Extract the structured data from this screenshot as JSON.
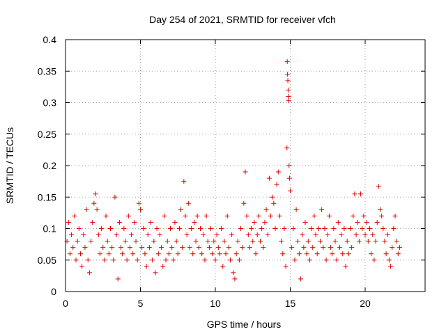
{
  "chart_data": {
    "type": "scatter",
    "title": "Day 254 of 2021, SRMTID for receiver vfch",
    "xlabel": "GPS time / hours",
    "ylabel": "SRMTID / TECUs",
    "xlim": [
      0,
      24
    ],
    "ylim": [
      0,
      0.4
    ],
    "xticks": [
      0,
      5,
      10,
      15,
      20
    ],
    "xtick_labels": [
      "0",
      "5",
      "10",
      "15",
      "20"
    ],
    "yticks": [
      0,
      0.05,
      0.1,
      0.15,
      0.2,
      0.25,
      0.3,
      0.35,
      0.4
    ],
    "ytick_labels": [
      "0",
      "0.05",
      "0.1",
      "0.15",
      "0.2",
      "0.25",
      "0.3",
      "0.35",
      "0.4"
    ],
    "grid": true,
    "marker": "+",
    "color": "#e00000",
    "series": [
      {
        "name": "SRMTID",
        "points": [
          [
            0.1,
            0.08
          ],
          [
            0.2,
            0.11
          ],
          [
            0.3,
            0.06
          ],
          [
            0.4,
            0.09
          ],
          [
            0.5,
            0.07
          ],
          [
            0.6,
            0.12
          ],
          [
            0.7,
            0.05
          ],
          [
            0.8,
            0.08
          ],
          [
            0.9,
            0.1
          ],
          [
            1.0,
            0.06
          ],
          [
            1.1,
            0.04
          ],
          [
            1.2,
            0.09
          ],
          [
            1.3,
            0.07
          ],
          [
            1.4,
            0.13
          ],
          [
            1.5,
            0.05
          ],
          [
            1.6,
            0.03
          ],
          [
            1.7,
            0.08
          ],
          [
            1.8,
            0.11
          ],
          [
            1.9,
            0.14
          ],
          [
            2.0,
            0.155
          ],
          [
            2.1,
            0.13
          ],
          [
            2.2,
            0.09
          ],
          [
            2.3,
            0.06
          ],
          [
            2.4,
            0.1
          ],
          [
            2.5,
            0.07
          ],
          [
            2.6,
            0.05
          ],
          [
            2.7,
            0.12
          ],
          [
            2.8,
            0.08
          ],
          [
            2.9,
            0.06
          ],
          [
            3.0,
            0.1
          ],
          [
            3.1,
            0.07
          ],
          [
            3.2,
            0.05
          ],
          [
            3.3,
            0.15
          ],
          [
            3.4,
            0.09
          ],
          [
            3.5,
            0.02
          ],
          [
            3.6,
            0.11
          ],
          [
            3.7,
            0.07
          ],
          [
            3.8,
            0.06
          ],
          [
            3.9,
            0.1
          ],
          [
            4.0,
            0.08
          ],
          [
            4.1,
            0.05
          ],
          [
            4.2,
            0.12
          ],
          [
            4.3,
            0.07
          ],
          [
            4.4,
            0.09
          ],
          [
            4.5,
            0.06
          ],
          [
            4.6,
            0.11
          ],
          [
            4.7,
            0.08
          ],
          [
            4.8,
            0.05
          ],
          [
            4.9,
            0.14
          ],
          [
            5.0,
            0.13
          ],
          [
            5.1,
            0.07
          ],
          [
            5.2,
            0.1
          ],
          [
            5.3,
            0.06
          ],
          [
            5.4,
            0.04
          ],
          [
            5.5,
            0.09
          ],
          [
            5.6,
            0.07
          ],
          [
            5.7,
            0.11
          ],
          [
            5.8,
            0.05
          ],
          [
            5.9,
            0.08
          ],
          [
            6.0,
            0.03
          ],
          [
            6.1,
            0.1
          ],
          [
            6.2,
            0.06
          ],
          [
            6.3,
            0.09
          ],
          [
            6.4,
            0.07
          ],
          [
            6.5,
            0.04
          ],
          [
            6.6,
            0.12
          ],
          [
            6.7,
            0.05
          ],
          [
            6.8,
            0.08
          ],
          [
            6.9,
            0.06
          ],
          [
            7.0,
            0.1
          ],
          [
            7.1,
            0.07
          ],
          [
            7.2,
            0.05
          ],
          [
            7.3,
            0.11
          ],
          [
            7.4,
            0.08
          ],
          [
            7.5,
            0.06
          ],
          [
            7.6,
            0.1
          ],
          [
            7.7,
            0.13
          ],
          [
            7.8,
            0.07
          ],
          [
            7.9,
            0.175
          ],
          [
            8.0,
            0.12
          ],
          [
            8.1,
            0.09
          ],
          [
            8.2,
            0.14
          ],
          [
            8.3,
            0.07
          ],
          [
            8.4,
            0.1
          ],
          [
            8.5,
            0.06
          ],
          [
            8.6,
            0.11
          ],
          [
            8.7,
            0.08
          ],
          [
            8.8,
            0.12
          ],
          [
            8.9,
            0.07
          ],
          [
            9.0,
            0.1
          ],
          [
            9.1,
            0.06
          ],
          [
            9.2,
            0.09
          ],
          [
            9.3,
            0.05
          ],
          [
            9.4,
            0.12
          ],
          [
            9.5,
            0.08
          ],
          [
            9.6,
            0.07
          ],
          [
            9.7,
            0.1
          ],
          [
            9.8,
            0.06
          ],
          [
            9.9,
            0.08
          ],
          [
            10.0,
            0.05
          ],
          [
            10.1,
            0.09
          ],
          [
            10.2,
            0.07
          ],
          [
            10.3,
            0.06
          ],
          [
            10.4,
            0.1
          ],
          [
            10.5,
            0.04
          ],
          [
            10.6,
            0.08
          ],
          [
            10.7,
            0.06
          ],
          [
            10.8,
            0.12
          ],
          [
            10.9,
            0.07
          ],
          [
            11.0,
            0.05
          ],
          [
            11.1,
            0.09
          ],
          [
            11.2,
            0.03
          ],
          [
            11.3,
            0.02
          ],
          [
            11.4,
            0.06
          ],
          [
            11.5,
            0.08
          ],
          [
            11.6,
            0.05
          ],
          [
            11.7,
            0.1
          ],
          [
            11.8,
            0.07
          ],
          [
            11.9,
            0.14
          ],
          [
            12.0,
            0.19
          ],
          [
            12.1,
            0.12
          ],
          [
            12.2,
            0.09
          ],
          [
            12.3,
            0.07
          ],
          [
            12.4,
            0.1
          ],
          [
            12.5,
            0.08
          ],
          [
            12.6,
            0.11
          ],
          [
            12.7,
            0.06
          ],
          [
            12.8,
            0.09
          ],
          [
            12.9,
            0.12
          ],
          [
            13.0,
            0.08
          ],
          [
            13.1,
            0.1
          ],
          [
            13.2,
            0.07
          ],
          [
            13.3,
            0.11
          ],
          [
            13.4,
            0.13
          ],
          [
            13.5,
            0.09
          ],
          [
            13.6,
            0.18
          ],
          [
            13.7,
            0.12
          ],
          [
            13.8,
            0.15
          ],
          [
            13.9,
            0.14
          ],
          [
            14.0,
            0.1
          ],
          [
            14.1,
            0.17
          ],
          [
            14.2,
            0.19
          ],
          [
            14.3,
            0.12
          ],
          [
            14.4,
            0.08
          ],
          [
            14.5,
            0.06
          ],
          [
            14.6,
            0.1
          ],
          [
            14.7,
            0.04
          ],
          [
            14.8,
            0.365
          ],
          [
            14.82,
            0.345
          ],
          [
            14.84,
            0.335
          ],
          [
            14.86,
            0.32
          ],
          [
            14.88,
            0.31
          ],
          [
            14.9,
            0.303
          ],
          [
            14.78,
            0.228
          ],
          [
            14.92,
            0.2
          ],
          [
            14.95,
            0.18
          ],
          [
            15.0,
            0.16
          ],
          [
            15.1,
            0.07
          ],
          [
            15.2,
            0.1
          ],
          [
            15.3,
            0.05
          ],
          [
            15.4,
            0.13
          ],
          [
            15.5,
            0.08
          ],
          [
            15.6,
            0.06
          ],
          [
            15.7,
            0.02
          ],
          [
            15.8,
            0.09
          ],
          [
            15.9,
            0.07
          ],
          [
            16.0,
            0.11
          ],
          [
            16.1,
            0.06
          ],
          [
            16.2,
            0.08
          ],
          [
            16.3,
            0.05
          ],
          [
            16.4,
            0.1
          ],
          [
            16.5,
            0.07
          ],
          [
            16.6,
            0.12
          ],
          [
            16.7,
            0.09
          ],
          [
            16.8,
            0.06
          ],
          [
            16.9,
            0.1
          ],
          [
            17.0,
            0.08
          ],
          [
            17.1,
            0.13
          ],
          [
            17.2,
            0.07
          ],
          [
            17.3,
            0.1
          ],
          [
            17.4,
            0.05
          ],
          [
            17.5,
            0.09
          ],
          [
            17.6,
            0.12
          ],
          [
            17.7,
            0.07
          ],
          [
            17.8,
            0.06
          ],
          [
            17.9,
            0.1
          ],
          [
            18.0,
            0.08
          ],
          [
            18.1,
            0.05
          ],
          [
            18.2,
            0.11
          ],
          [
            18.3,
            0.07
          ],
          [
            18.4,
            0.09
          ],
          [
            18.5,
            0.06
          ],
          [
            18.6,
            0.1
          ],
          [
            18.7,
            0.04
          ],
          [
            18.8,
            0.08
          ],
          [
            18.9,
            0.06
          ],
          [
            19.0,
            0.1
          ],
          [
            19.1,
            0.07
          ],
          [
            19.2,
            0.12
          ],
          [
            19.3,
            0.155
          ],
          [
            19.4,
            0.09
          ],
          [
            19.5,
            0.11
          ],
          [
            19.6,
            0.08
          ],
          [
            19.7,
            0.155
          ],
          [
            19.8,
            0.1
          ],
          [
            19.9,
            0.12
          ],
          [
            20.0,
            0.09
          ],
          [
            20.1,
            0.11
          ],
          [
            20.2,
            0.08
          ],
          [
            20.3,
            0.1
          ],
          [
            20.4,
            0.06
          ],
          [
            20.5,
            0.09
          ],
          [
            20.6,
            0.05
          ],
          [
            20.7,
            0.08
          ],
          [
            20.8,
            0.11
          ],
          [
            20.9,
            0.167
          ],
          [
            21.0,
            0.13
          ],
          [
            21.1,
            0.12
          ],
          [
            21.2,
            0.1
          ],
          [
            21.3,
            0.08
          ],
          [
            21.4,
            0.06
          ],
          [
            21.5,
            0.09
          ],
          [
            21.6,
            0.05
          ],
          [
            21.7,
            0.04
          ],
          [
            21.8,
            0.07
          ],
          [
            21.9,
            0.1
          ],
          [
            22.0,
            0.12
          ],
          [
            22.1,
            0.08
          ],
          [
            22.2,
            0.06
          ],
          [
            22.3,
            0.07
          ]
        ]
      }
    ]
  }
}
